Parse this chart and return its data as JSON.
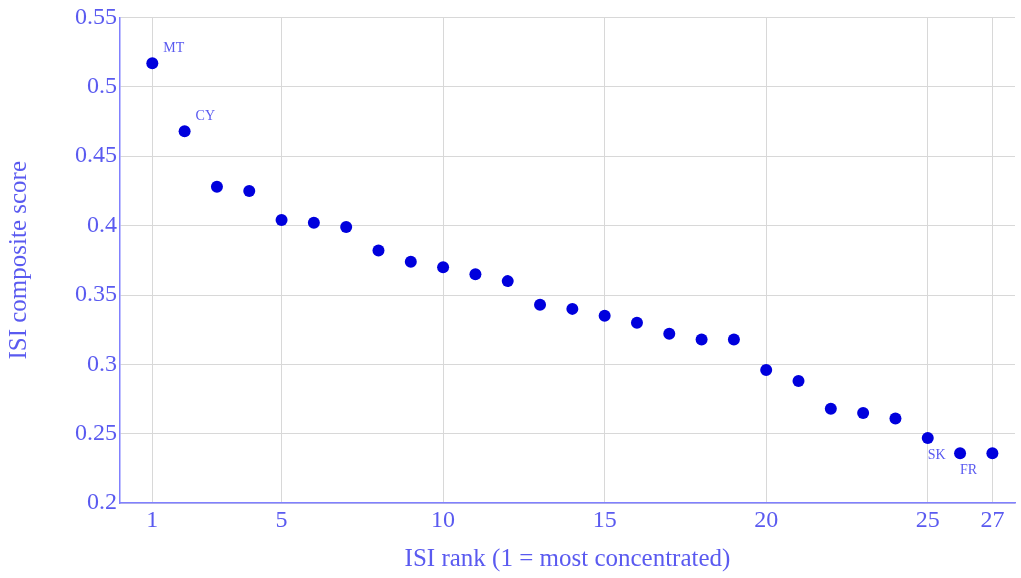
{
  "chart_data": {
    "type": "scatter",
    "xlabel": "ISI rank (1 = most concentrated)",
    "ylabel": "ISI composite score",
    "x": [
      1,
      2,
      3,
      4,
      5,
      6,
      7,
      8,
      9,
      10,
      11,
      12,
      13,
      14,
      15,
      16,
      17,
      18,
      19,
      20,
      21,
      22,
      23,
      24,
      25,
      26,
      27
    ],
    "series": [
      {
        "color": "#0000dd",
        "values": [
          0.517,
          0.468,
          0.428,
          0.425,
          0.404,
          0.402,
          0.399,
          0.382,
          0.374,
          0.37,
          0.365,
          0.36,
          0.343,
          0.34,
          0.335,
          0.33,
          0.322,
          0.318,
          0.318,
          0.296,
          0.288,
          0.268,
          0.265,
          0.261,
          0.247,
          0.236,
          0.236
        ]
      }
    ],
    "xlim": [
      0,
      27.7
    ],
    "xticks": [
      1,
      5,
      10,
      15,
      20,
      25,
      27
    ],
    "ylim": [
      0.2,
      0.55
    ],
    "yticks": [
      0.2,
      0.25,
      0.3,
      0.35,
      0.4,
      0.45,
      0.5,
      0.55
    ],
    "annotations": [
      {
        "text": "MT",
        "x": 1,
        "y": 0.517
      },
      {
        "text": "CY",
        "x": 2,
        "y": 0.468
      },
      {
        "text": "SK",
        "x": 25,
        "y": 0.247
      },
      {
        "text": "FR",
        "x": 26,
        "y": 0.236
      }
    ],
    "grid": true,
    "legend": false,
    "marker": "circle"
  }
}
